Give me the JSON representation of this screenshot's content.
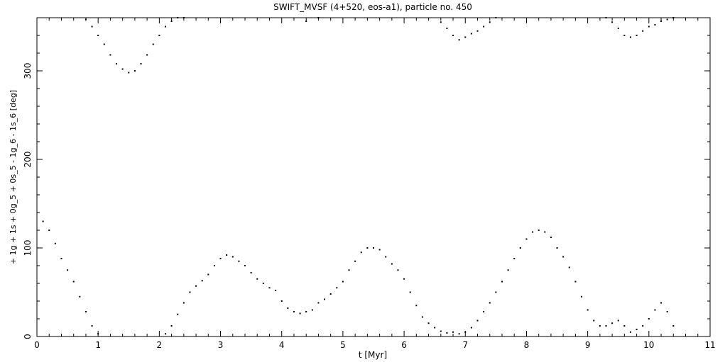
{
  "chart_data": {
    "type": "scatter",
    "title": "SWIFT_MVSF (4+520, eos-a1), particle no. 450",
    "xlabel": "t [Myr]",
    "ylabel": "+ 1g + 1s + 0g_5 + 0s_5 - 1g_6 - 1s_6 [deg]",
    "xlim": [
      0,
      11
    ],
    "ylim": [
      0,
      360
    ],
    "xticks": [
      0,
      1,
      2,
      3,
      4,
      5,
      6,
      7,
      8,
      9,
      10,
      11
    ],
    "yticks": [
      0,
      100,
      200,
      300
    ],
    "marker_color": "#000000",
    "grid": false,
    "series": [
      {
        "x": [
          0.1,
          0.2,
          0.3,
          0.4,
          0.5,
          0.6,
          0.7,
          0.8,
          0.9,
          1.0,
          2.1,
          2.2,
          2.3,
          2.4,
          2.5,
          2.6,
          2.7,
          2.8,
          2.9,
          3.0,
          3.1,
          3.2,
          3.3,
          3.4,
          3.5,
          3.6,
          3.7,
          3.8,
          3.9,
          4.0,
          4.1,
          4.2,
          4.3,
          4.4,
          4.5,
          4.6,
          4.7,
          4.8,
          4.9,
          5.0,
          5.1,
          5.2,
          5.3,
          5.4,
          5.5,
          5.6,
          5.7,
          5.8,
          5.9,
          6.0,
          6.1,
          6.2,
          6.3,
          6.4,
          6.5,
          6.6,
          6.7,
          6.8,
          6.9,
          7.0,
          7.1,
          7.2,
          7.3,
          7.4,
          7.5,
          7.6,
          7.7,
          7.8,
          7.9,
          8.0,
          8.1,
          8.2,
          8.3,
          8.4,
          8.5,
          8.6,
          8.7,
          8.8,
          8.9,
          9.0,
          9.1,
          9.2,
          9.3,
          9.4,
          9.5,
          9.6,
          9.7,
          9.8,
          9.9,
          10.0,
          10.1,
          10.2,
          10.3,
          10.4,
          0.8,
          0.9,
          1.0,
          1.1,
          1.2,
          1.3,
          1.4,
          1.5,
          1.6,
          1.7,
          1.8,
          1.9,
          2.0,
          2.1,
          2.2,
          2.3,
          2.4,
          4.4,
          4.6,
          6.6,
          6.7,
          6.8,
          6.9,
          7.0,
          7.1,
          7.2,
          7.3,
          7.4,
          7.5,
          9.3,
          9.4,
          9.5,
          9.6,
          9.7,
          9.8,
          9.9,
          10.0,
          10.1,
          10.2,
          10.3,
          10.4
        ],
        "y": [
          130,
          120,
          105,
          88,
          75,
          62,
          45,
          28,
          12,
          3,
          3,
          12,
          25,
          38,
          50,
          57,
          63,
          70,
          80,
          88,
          92,
          90,
          85,
          80,
          72,
          65,
          60,
          55,
          52,
          40,
          32,
          28,
          26,
          28,
          30,
          38,
          42,
          48,
          55,
          62,
          75,
          85,
          95,
          100,
          100,
          98,
          90,
          82,
          75,
          65,
          50,
          35,
          22,
          15,
          10,
          6,
          4,
          5,
          3,
          5,
          10,
          18,
          28,
          38,
          50,
          62,
          75,
          88,
          100,
          110,
          118,
          120,
          118,
          112,
          100,
          90,
          78,
          62,
          45,
          30,
          18,
          12,
          12,
          15,
          18,
          12,
          5,
          8,
          12,
          20,
          30,
          38,
          28,
          12,
          358,
          350,
          340,
          330,
          318,
          308,
          302,
          298,
          300,
          308,
          318,
          330,
          340,
          350,
          356,
          360,
          360,
          356,
          360,
          355,
          348,
          340,
          335,
          338,
          342,
          345,
          350,
          355,
          360,
          360,
          355,
          348,
          340,
          338,
          340,
          345,
          350,
          352,
          356,
          358,
          360
        ]
      }
    ]
  }
}
